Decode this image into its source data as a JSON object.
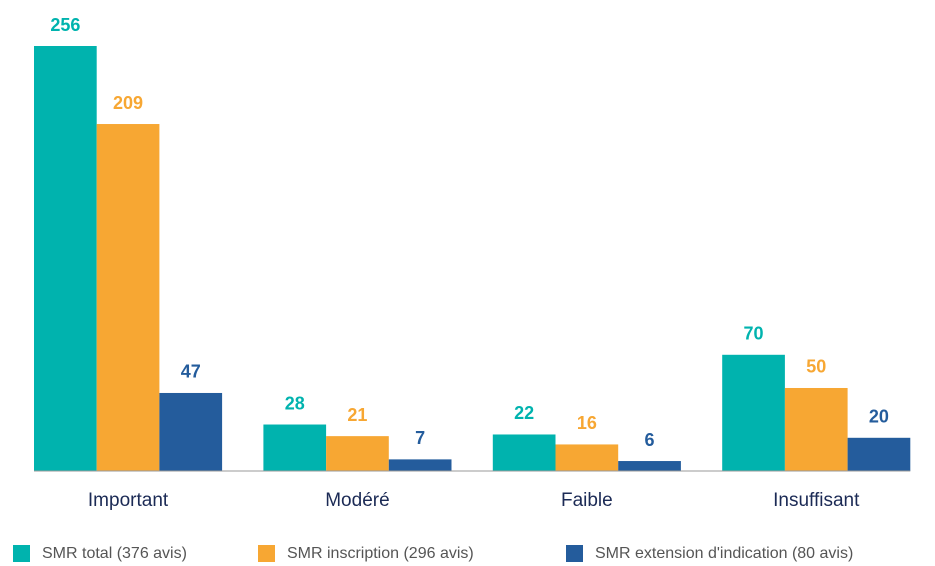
{
  "chart_data": {
    "type": "bar",
    "categories": [
      "Important",
      "Modéré",
      "Faible",
      "Insuffisant"
    ],
    "series": [
      {
        "name": "SMR total (376 avis)",
        "color": "#00b3ae",
        "values": [
          256,
          28,
          22,
          70
        ]
      },
      {
        "name": "SMR inscription (296 avis)",
        "color": "#f7a733",
        "values": [
          209,
          21,
          16,
          50
        ]
      },
      {
        "name": "SMR extension d'indication (80 avis)",
        "color": "#245c9c",
        "values": [
          47,
          7,
          6,
          20
        ]
      }
    ]
  }
}
